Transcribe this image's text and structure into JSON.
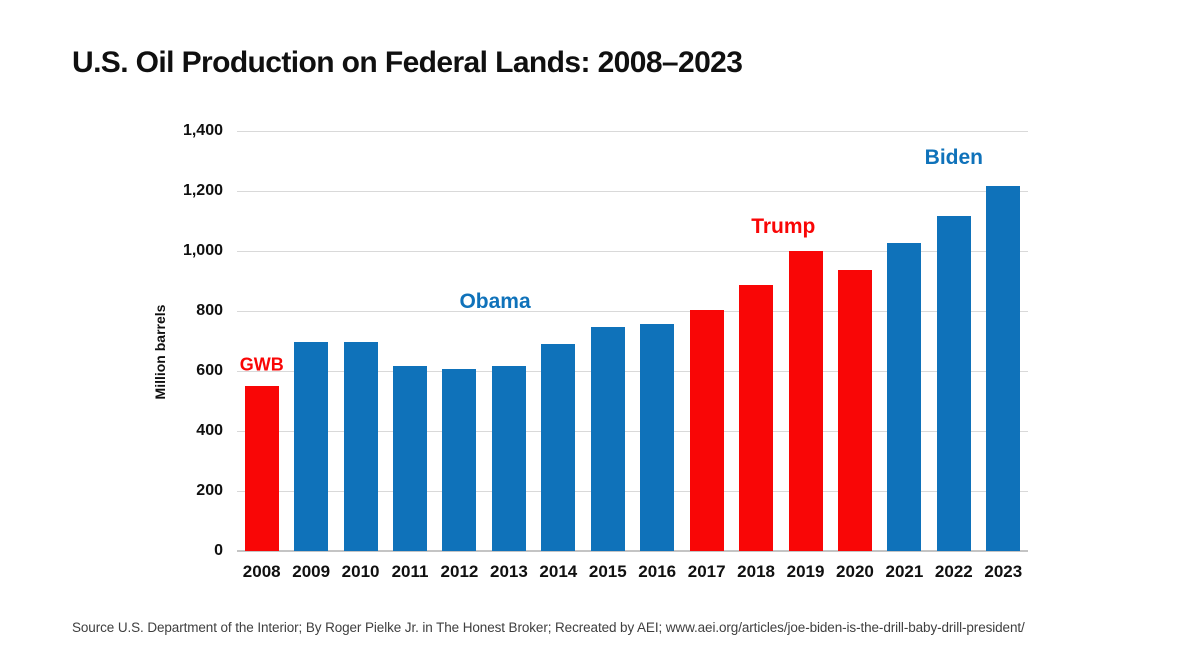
{
  "title": {
    "text": "U.S. Oil Production on Federal Lands: 2008–2023"
  },
  "source_note": "Source U.S. Department of the Interior; By Roger Pielke Jr. in The Honest Broker; Recreated by AEI; www.aei.org/articles/joe-biden-is-the-drill-baby-drill-president/",
  "colors": {
    "republican_red": "#f90606",
    "democrat_blue": "#0f72ba",
    "title_text": "#101010",
    "gridline": "#d9d9d9",
    "source_text": "#3f3f3f"
  },
  "chart_data": {
    "type": "bar",
    "title": "U.S. Oil Production on Federal Lands: 2008–2023",
    "xlabel": "",
    "ylabel": "Million barrels",
    "ylim": [
      0,
      1400
    ],
    "ytick_interval": 200,
    "ytick_labels": [
      "0",
      "200",
      "400",
      "600",
      "800",
      "1,000",
      "1,200",
      "1,400"
    ],
    "grid": true,
    "legend": "none",
    "categories": [
      "2008",
      "2009",
      "2010",
      "2011",
      "2012",
      "2013",
      "2014",
      "2015",
      "2016",
      "2017",
      "2018",
      "2019",
      "2020",
      "2021",
      "2022",
      "2023"
    ],
    "values": [
      550,
      695,
      695,
      615,
      605,
      615,
      690,
      745,
      755,
      805,
      885,
      1000,
      935,
      1025,
      1115,
      1215
    ],
    "bar_colors": [
      "#f90606",
      "#0f72ba",
      "#0f72ba",
      "#0f72ba",
      "#0f72ba",
      "#0f72ba",
      "#0f72ba",
      "#0f72ba",
      "#0f72ba",
      "#f90606",
      "#f90606",
      "#f90606",
      "#f90606",
      "#0f72ba",
      "#0f72ba",
      "#0f72ba"
    ],
    "annotations": [
      {
        "text": "GWB",
        "color": "#f90606",
        "x_index": 0.0,
        "y_value": 620,
        "small": true
      },
      {
        "text": "Obama",
        "color": "#0f72ba",
        "x_index": 4.72,
        "y_value": 830,
        "small": false
      },
      {
        "text": "Trump",
        "color": "#f90606",
        "x_index": 10.55,
        "y_value": 1080,
        "small": false
      },
      {
        "text": "Biden",
        "color": "#0f72ba",
        "x_index": 14.0,
        "y_value": 1310,
        "small": false
      }
    ]
  }
}
